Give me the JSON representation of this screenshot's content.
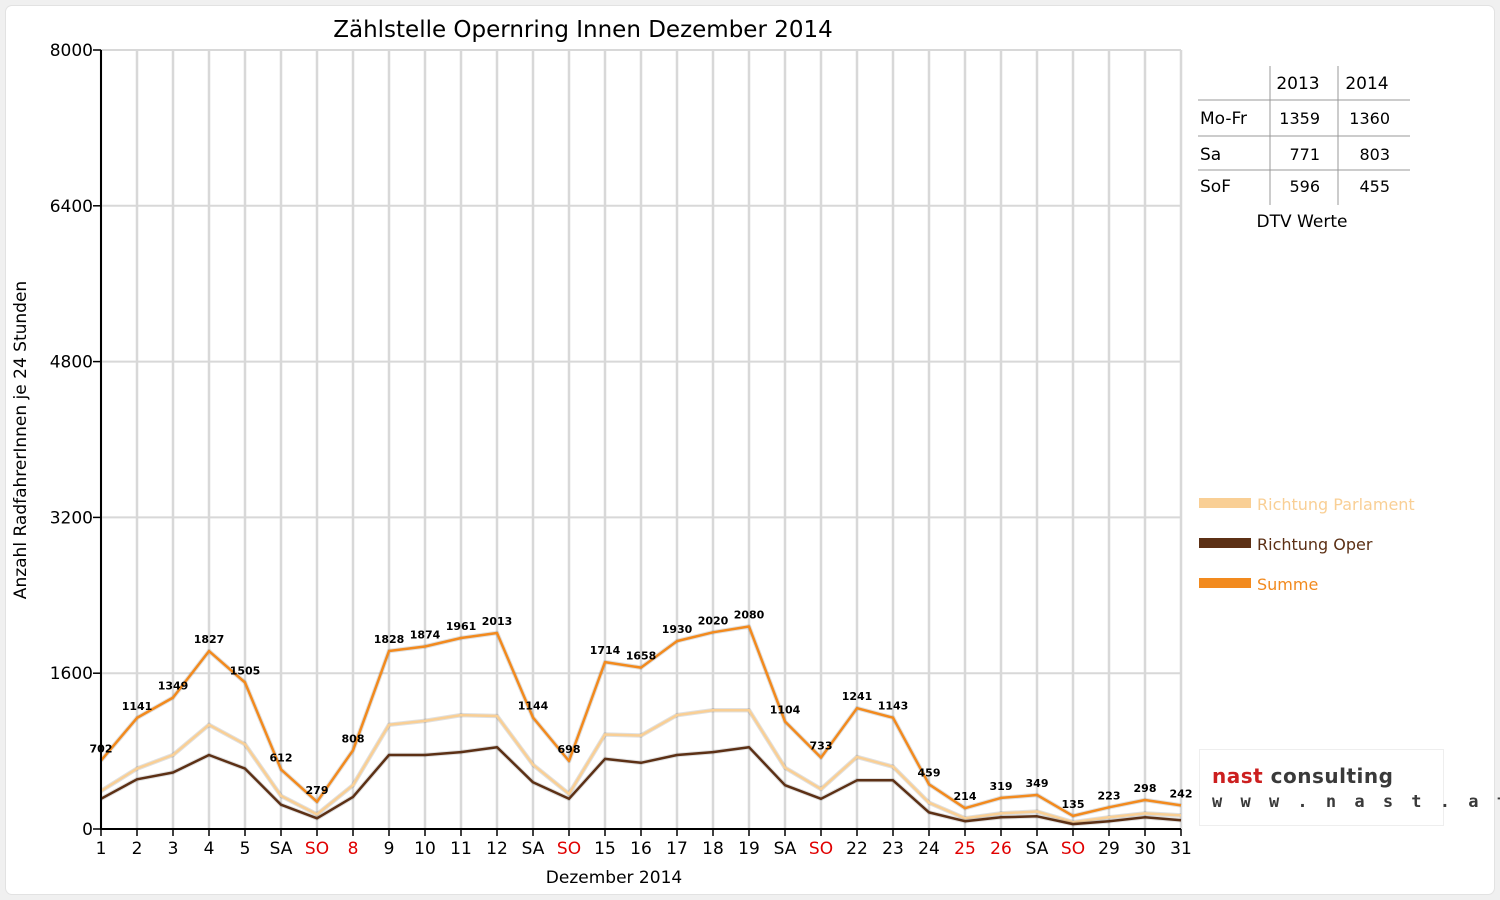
{
  "chart_data": {
    "type": "line",
    "title": "Zählstelle Opernring Innen Dezember 2014",
    "xlabel": "Dezember 2014",
    "ylabel": "Anzahl RadfahrerInnen je 24 Stunden",
    "ylim": [
      0,
      8000
    ],
    "yticks": [
      0,
      1600,
      3200,
      4800,
      6400,
      8000
    ],
    "grid": true,
    "legend_position": "right",
    "categories": [
      "1",
      "2",
      "3",
      "4",
      "5",
      "SA",
      "SO",
      "8",
      "9",
      "10",
      "11",
      "12",
      "SA",
      "SO",
      "15",
      "16",
      "17",
      "18",
      "19",
      "SA",
      "SO",
      "22",
      "23",
      "24",
      "25",
      "26",
      "SA",
      "SO",
      "29",
      "30",
      "31"
    ],
    "red_categories": [
      6,
      7,
      13,
      20,
      24,
      25,
      27
    ],
    "series": [
      {
        "name": "Richtung Parlament",
        "color": "#f9cf95",
        "values": [
          390,
          620,
          760,
          1070,
          870,
          340,
          150,
          450,
          1070,
          1110,
          1170,
          1160,
          660,
          360,
          970,
          960,
          1170,
          1220,
          1220,
          630,
          410,
          740,
          640,
          270,
          110,
          160,
          180,
          70,
          120,
          160,
          140
        ]
      },
      {
        "name": "Richtung Oper",
        "color": "#5c3015",
        "values": [
          310,
          510,
          580,
          760,
          620,
          250,
          110,
          330,
          760,
          760,
          790,
          840,
          480,
          310,
          720,
          680,
          760,
          790,
          840,
          450,
          310,
          500,
          500,
          170,
          80,
          120,
          130,
          50,
          80,
          120,
          90
        ]
      },
      {
        "name": "Summe",
        "color": "#f28a1e",
        "values": [
          702,
          1141,
          1349,
          1827,
          1505,
          612,
          279,
          808,
          1828,
          1874,
          1961,
          2013,
          1144,
          698,
          1714,
          1658,
          1930,
          2020,
          2080,
          1104,
          733,
          1241,
          1143,
          459,
          214,
          319,
          349,
          135,
          223,
          298,
          242
        ]
      }
    ]
  },
  "dtv_table": {
    "caption": "DTV Werte",
    "columns": [
      "2013",
      "2014"
    ],
    "rows": [
      {
        "label": "Mo-Fr",
        "v2013": "1359",
        "v2014": "1360"
      },
      {
        "label": "Sa",
        "v2013": "771",
        "v2014": "803"
      },
      {
        "label": "SoF",
        "v2013": "596",
        "v2014": "455"
      }
    ]
  },
  "logo": {
    "brand": "nast",
    "rest": " consulting",
    "url": "w w w . n a s t . a t"
  }
}
